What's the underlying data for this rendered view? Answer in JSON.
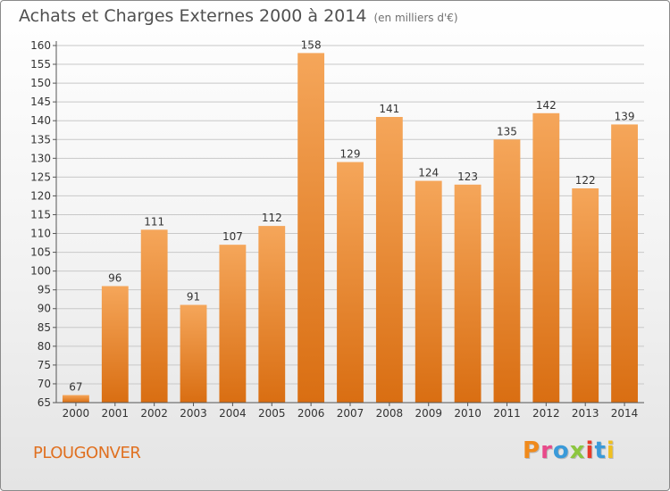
{
  "header": {
    "title": "Achats et Charges Externes 2000 à 2014",
    "subtitle": "(en milliers d'€)"
  },
  "footer": {
    "commune": "PLOUGONVER",
    "logo_text": "Proxiti",
    "logo_colors": [
      "#f08a1c",
      "#e84a8a",
      "#3a9ad9",
      "#8cc63f",
      "#e83a2a",
      "#3a9ad9",
      "#f0c020"
    ]
  },
  "chart_data": {
    "type": "bar",
    "categories": [
      "2000",
      "2001",
      "2002",
      "2003",
      "2004",
      "2005",
      "2006",
      "2007",
      "2008",
      "2009",
      "2010",
      "2011",
      "2012",
      "2013",
      "2014"
    ],
    "values": [
      67,
      96,
      111,
      91,
      107,
      112,
      158,
      129,
      141,
      124,
      123,
      135,
      142,
      122,
      139
    ],
    "ylim": [
      65,
      160
    ],
    "yticks": [
      65,
      70,
      75,
      80,
      85,
      90,
      95,
      100,
      105,
      110,
      115,
      120,
      125,
      130,
      135,
      140,
      145,
      150,
      155,
      160
    ],
    "grid": true,
    "bar_color_top": "#f5a65a",
    "bar_color_bottom": "#d96e12"
  }
}
